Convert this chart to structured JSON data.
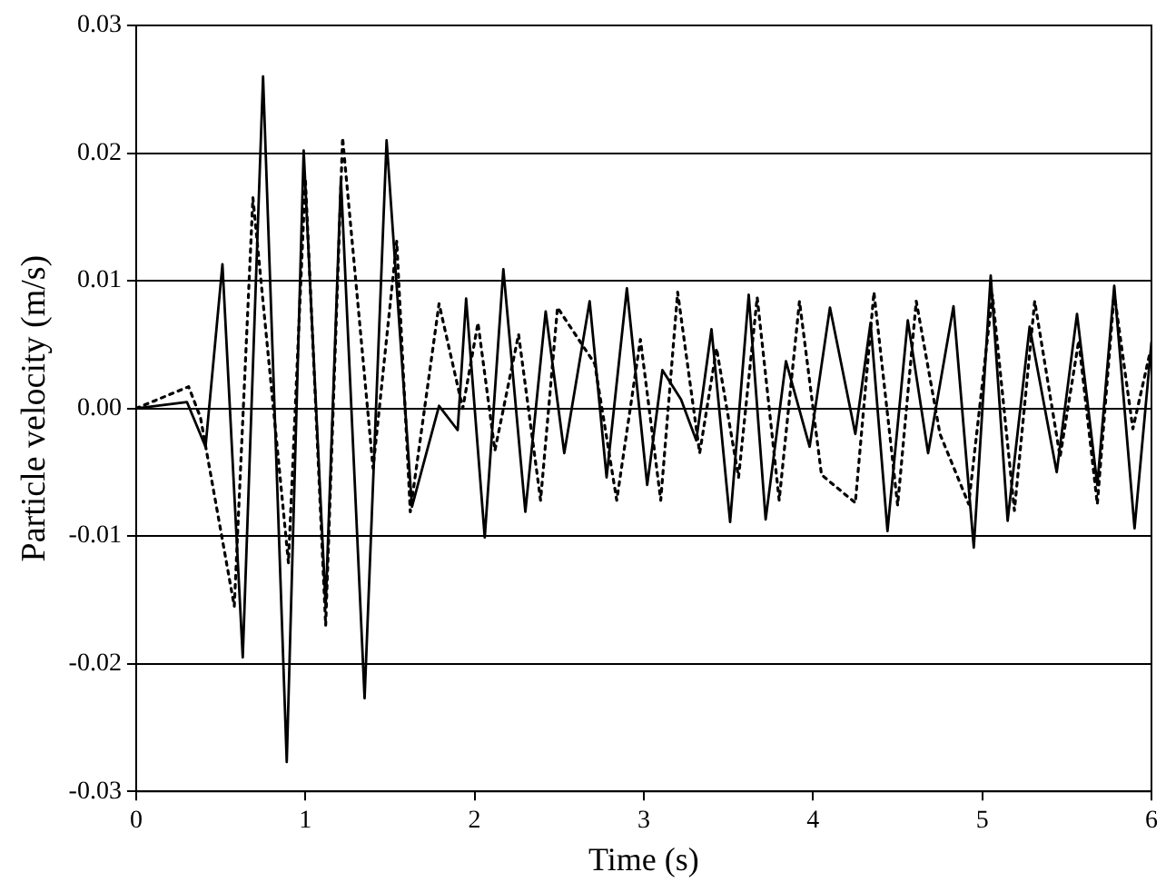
{
  "chart_data": {
    "type": "line",
    "xlabel": "Time (s)",
    "ylabel": "Particle velocity (m/s)",
    "xlim": [
      0,
      6
    ],
    "xticks": [
      0,
      1,
      2,
      3,
      4,
      5,
      6
    ],
    "ylim": [
      -0.03,
      0.03
    ],
    "yticks": [
      -0.03,
      -0.02,
      -0.01,
      {
        "value": 0,
        "label": "0.00"
      },
      0.01,
      0.02,
      0.03
    ],
    "grid": "y",
    "marker": "none",
    "legend": false,
    "series": [
      {
        "color": "#000000",
        "line_style": "solid",
        "x": [
          0,
          0.3,
          0.41,
          0.51,
          0.63,
          0.75,
          0.89,
          0.99,
          1.12,
          1.21,
          1.35,
          1.48,
          1.63,
          1.79,
          1.9,
          1.95,
          2.06,
          2.17,
          2.3,
          2.42,
          2.53,
          2.68,
          2.78,
          2.9,
          3.02,
          3.11,
          3.22,
          3.31,
          3.4,
          3.51,
          3.62,
          3.72,
          3.84,
          3.98,
          4.1,
          4.25,
          4.34,
          4.44,
          4.56,
          4.68,
          4.83,
          4.95,
          5.05,
          5.15,
          5.28,
          5.44,
          5.56,
          5.68,
          5.78,
          5.9,
          6
        ],
        "values": [
          0,
          0.0005,
          -0.003,
          0.0113,
          -0.0195,
          0.026,
          -0.0277,
          0.0202,
          -0.0155,
          0.018,
          -0.0227,
          0.021,
          -0.0077,
          0.0002,
          -0.0017,
          0.0086,
          -0.0101,
          0.0109,
          -0.0081,
          0.0076,
          -0.0035,
          0.0084,
          -0.0054,
          0.0094,
          -0.006,
          0.003,
          0.0007,
          -0.0025,
          0.0062,
          -0.0089,
          0.0089,
          -0.0087,
          0.0037,
          -0.003,
          0.0079,
          -0.002,
          0.0067,
          -0.0096,
          0.0069,
          -0.0035,
          0.008,
          -0.0109,
          0.0104,
          -0.0088,
          0.0064,
          -0.005,
          0.0074,
          -0.006,
          0.0096,
          -0.0094,
          0.0052
        ]
      },
      {
        "color": "#000000",
        "line_style": "dotted",
        "x": [
          0,
          0.31,
          0.38,
          0.58,
          0.69,
          0.9,
          1.0,
          1.12,
          1.22,
          1.4,
          1.54,
          1.62,
          1.79,
          1.93,
          2.02,
          2.12,
          2.26,
          2.39,
          2.49,
          2.71,
          2.84,
          2.98,
          3.1,
          3.2,
          3.33,
          3.43,
          3.56,
          3.67,
          3.8,
          3.92,
          4.05,
          4.25,
          4.36,
          4.5,
          4.61,
          4.75,
          4.92,
          5.06,
          5.19,
          5.31,
          5.46,
          5.57,
          5.68,
          5.78,
          5.89,
          5.99
        ],
        "values": [
          0,
          0.0017,
          -0.0007,
          -0.0155,
          0.0165,
          -0.0121,
          0.018,
          -0.017,
          0.0212,
          -0.0047,
          0.0131,
          -0.0081,
          0.0082,
          0,
          0.0067,
          -0.0033,
          0.0058,
          -0.0072,
          0.0079,
          0.0035,
          -0.0072,
          0.0054,
          -0.0072,
          0.0091,
          -0.0035,
          0.0047,
          -0.0054,
          0.0087,
          -0.0072,
          0.0084,
          -0.0052,
          -0.0074,
          0.0091,
          -0.0076,
          0.0084,
          -0.002,
          -0.0075,
          0.0089,
          -0.008,
          0.0084,
          -0.0038,
          0.0053,
          -0.0075,
          0.009,
          -0.0016,
          0.0043
        ]
      }
    ]
  }
}
